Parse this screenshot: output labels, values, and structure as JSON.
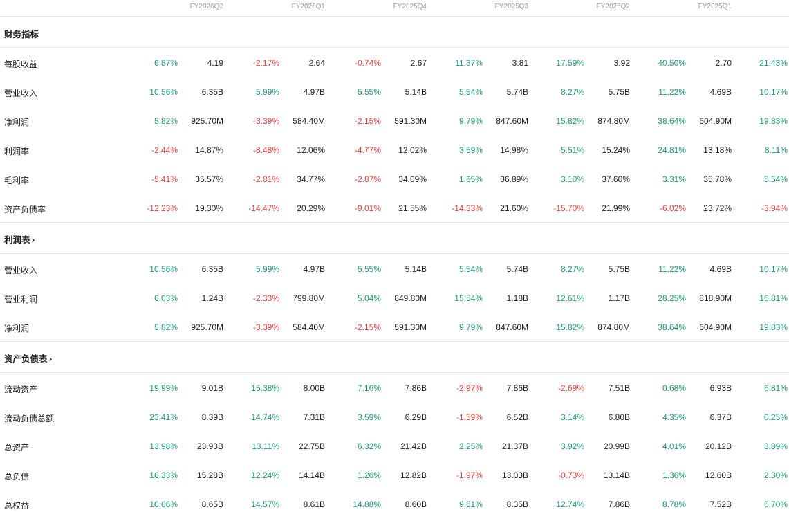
{
  "periods": [
    "FY2026Q2",
    "FY2026Q1",
    "FY2025Q4",
    "FY2025Q3",
    "FY2025Q2",
    "FY2025Q1"
  ],
  "sections": [
    {
      "title": "财务指标",
      "link": false,
      "rows": [
        {
          "label": "每股收益",
          "cells": [
            [
              "6.87%",
              "4.19"
            ],
            [
              "-2.17%",
              "2.64"
            ],
            [
              "-0.74%",
              "2.67"
            ],
            [
              "11.37%",
              "3.81"
            ],
            [
              "17.59%",
              "3.92"
            ],
            [
              "40.50%",
              "2.70"
            ],
            [
              "21.43%",
              ""
            ]
          ]
        },
        {
          "label": "营业收入",
          "cells": [
            [
              "10.56%",
              "6.35B"
            ],
            [
              "5.99%",
              "4.97B"
            ],
            [
              "5.55%",
              "5.14B"
            ],
            [
              "5.54%",
              "5.74B"
            ],
            [
              "8.27%",
              "5.75B"
            ],
            [
              "11.22%",
              "4.69B"
            ],
            [
              "10.17%",
              ""
            ]
          ]
        },
        {
          "label": "净利润",
          "cells": [
            [
              "5.82%",
              "925.70M"
            ],
            [
              "-3.39%",
              "584.40M"
            ],
            [
              "-2.15%",
              "591.30M"
            ],
            [
              "9.79%",
              "847.60M"
            ],
            [
              "15.82%",
              "874.80M"
            ],
            [
              "38.64%",
              "604.90M"
            ],
            [
              "19.83%",
              ""
            ]
          ]
        },
        {
          "label": "利润率",
          "cells": [
            [
              "-2.44%",
              "14.87%"
            ],
            [
              "-8.48%",
              "12.06%"
            ],
            [
              "-4.77%",
              "12.02%"
            ],
            [
              "3.59%",
              "14.98%"
            ],
            [
              "5.51%",
              "15.24%"
            ],
            [
              "24.81%",
              "13.18%"
            ],
            [
              "8.11%",
              ""
            ]
          ]
        },
        {
          "label": "毛利率",
          "cells": [
            [
              "-5.41%",
              "35.57%"
            ],
            [
              "-2.81%",
              "34.77%"
            ],
            [
              "-2.87%",
              "34.09%"
            ],
            [
              "1.65%",
              "36.89%"
            ],
            [
              "3.10%",
              "37.60%"
            ],
            [
              "3.31%",
              "35.78%"
            ],
            [
              "5.54%",
              ""
            ]
          ]
        },
        {
          "label": "资产负债率",
          "cells": [
            [
              "-12.23%",
              "19.30%"
            ],
            [
              "-14.47%",
              "20.29%"
            ],
            [
              "-9.01%",
              "21.55%"
            ],
            [
              "-14.33%",
              "21.60%"
            ],
            [
              "-15.70%",
              "21.99%"
            ],
            [
              "-6.02%",
              "23.72%"
            ],
            [
              "-3.94%",
              ""
            ]
          ]
        }
      ]
    },
    {
      "title": "利润表",
      "link": true,
      "rows": [
        {
          "label": "营业收入",
          "cells": [
            [
              "10.56%",
              "6.35B"
            ],
            [
              "5.99%",
              "4.97B"
            ],
            [
              "5.55%",
              "5.14B"
            ],
            [
              "5.54%",
              "5.74B"
            ],
            [
              "8.27%",
              "5.75B"
            ],
            [
              "11.22%",
              "4.69B"
            ],
            [
              "10.17%",
              ""
            ]
          ]
        },
        {
          "label": "营业利润",
          "cells": [
            [
              "6.03%",
              "1.24B"
            ],
            [
              "-2.33%",
              "799.80M"
            ],
            [
              "5.04%",
              "849.80M"
            ],
            [
              "15.54%",
              "1.18B"
            ],
            [
              "12.61%",
              "1.17B"
            ],
            [
              "28.25%",
              "818.90M"
            ],
            [
              "16.81%",
              ""
            ]
          ]
        },
        {
          "label": "净利润",
          "cells": [
            [
              "5.82%",
              "925.70M"
            ],
            [
              "-3.39%",
              "584.40M"
            ],
            [
              "-2.15%",
              "591.30M"
            ],
            [
              "9.79%",
              "847.60M"
            ],
            [
              "15.82%",
              "874.80M"
            ],
            [
              "38.64%",
              "604.90M"
            ],
            [
              "19.83%",
              ""
            ]
          ]
        }
      ]
    },
    {
      "title": "资产负债表",
      "link": true,
      "rows": [
        {
          "label": "流动资产",
          "cells": [
            [
              "19.99%",
              "9.01B"
            ],
            [
              "15.38%",
              "8.00B"
            ],
            [
              "7.16%",
              "7.86B"
            ],
            [
              "-2.97%",
              "7.86B"
            ],
            [
              "-2.69%",
              "7.51B"
            ],
            [
              "0.68%",
              "6.93B"
            ],
            [
              "6.81%",
              ""
            ]
          ]
        },
        {
          "label": "流动负债总额",
          "cells": [
            [
              "23.41%",
              "8.39B"
            ],
            [
              "14.74%",
              "7.31B"
            ],
            [
              "3.59%",
              "6.29B"
            ],
            [
              "-1.59%",
              "6.52B"
            ],
            [
              "3.14%",
              "6.80B"
            ],
            [
              "4.35%",
              "6.37B"
            ],
            [
              "0.25%",
              ""
            ]
          ]
        },
        {
          "label": "总资产",
          "cells": [
            [
              "13.98%",
              "23.93B"
            ],
            [
              "13.11%",
              "22.75B"
            ],
            [
              "6.32%",
              "21.42B"
            ],
            [
              "2.25%",
              "21.37B"
            ],
            [
              "3.92%",
              "20.99B"
            ],
            [
              "4.01%",
              "20.12B"
            ],
            [
              "3.89%",
              ""
            ]
          ]
        },
        {
          "label": "总负债",
          "cells": [
            [
              "16.33%",
              "15.28B"
            ],
            [
              "12.24%",
              "14.14B"
            ],
            [
              "1.26%",
              "12.82B"
            ],
            [
              "-1.97%",
              "13.03B"
            ],
            [
              "-0.73%",
              "13.14B"
            ],
            [
              "1.36%",
              "12.60B"
            ],
            [
              "2.30%",
              ""
            ]
          ]
        },
        {
          "label": "总权益",
          "cells": [
            [
              "10.06%",
              "8.65B"
            ],
            [
              "14.57%",
              "8.61B"
            ],
            [
              "14.88%",
              "8.60B"
            ],
            [
              "9.61%",
              "8.35B"
            ],
            [
              "12.74%",
              "7.86B"
            ],
            [
              "8.78%",
              "7.52B"
            ],
            [
              "6.70%",
              ""
            ]
          ]
        }
      ]
    }
  ],
  "colors": {
    "positive": "#1f9a6e",
    "negative": "#e5413c",
    "text": "#222222",
    "header": "#9a9a9a",
    "divider": "#e6e6e6"
  },
  "icons": {
    "section_link": "chevron-right-icon"
  }
}
